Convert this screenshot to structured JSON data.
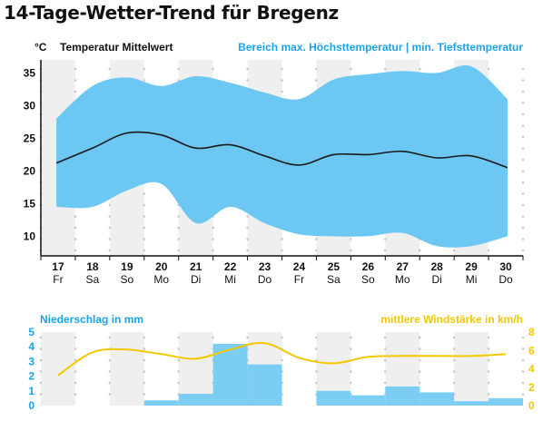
{
  "title": "14-Tage-Wetter-Trend für Bregenz",
  "colors": {
    "band": "#6cc8f2",
    "mean_line": "#1a1a1a",
    "accent": "#1aa3e8",
    "wind": "#f2c800",
    "precip": "#7ccdf4",
    "stripe": "#efefef",
    "dot": "#c8c8c8"
  },
  "chart_data": [
    {
      "type": "area",
      "unit_label": "°C",
      "mean_label": "Temperatur Mittelwert",
      "range_label": "Bereich max. Höchsttemperatur | min. Tiefsttemperatur",
      "days": [
        "17",
        "18",
        "19",
        "20",
        "21",
        "22",
        "23",
        "24",
        "25",
        "26",
        "27",
        "28",
        "29",
        "30"
      ],
      "weekdays": [
        "Fr",
        "Sa",
        "So",
        "Mo",
        "Di",
        "Mi",
        "Do",
        "Fr",
        "Sa",
        "So",
        "Mo",
        "Di",
        "Mi",
        "Do"
      ],
      "ylim": [
        7,
        37
      ],
      "yticks": [
        10,
        15,
        20,
        25,
        30,
        35
      ],
      "grid": false,
      "series": [
        {
          "name": "Temperatur Mittelwert",
          "values": [
            21.2,
            23.5,
            25.8,
            25.5,
            23.5,
            24.0,
            22.3,
            20.9,
            22.5,
            22.5,
            23.0,
            22.0,
            22.3,
            20.5
          ]
        },
        {
          "name": "max. Höchsttemperatur",
          "values": [
            28.0,
            33.0,
            34.3,
            33.0,
            34.5,
            33.5,
            32.0,
            31.0,
            34.0,
            34.8,
            35.3,
            35.0,
            36.0,
            31.0
          ]
        },
        {
          "name": "min. Tiefsttemperatur",
          "values": [
            14.5,
            14.5,
            17.0,
            18.0,
            12.0,
            14.5,
            12.0,
            10.3,
            10.0,
            10.0,
            10.5,
            8.5,
            8.5,
            10.0
          ]
        }
      ]
    },
    {
      "type": "bar",
      "left_label": "Niederschlag in mm",
      "right_label": "mittlere Windstärke in km/h",
      "ylim_left": [
        0,
        5
      ],
      "yticks_left": [
        0,
        1,
        2,
        3,
        4,
        5
      ],
      "ylim_right": [
        0,
        8
      ],
      "yticks_right": [
        0,
        2,
        4,
        6,
        8
      ],
      "series": [
        {
          "name": "Niederschlag in mm",
          "values": [
            0,
            0,
            0,
            0.35,
            0.8,
            4.2,
            2.8,
            0,
            1.0,
            0.7,
            1.3,
            0.9,
            0.3,
            0.5
          ]
        },
        {
          "name": "mittlere Windstärke in km/h",
          "values": [
            3.3,
            5.8,
            6.1,
            5.6,
            5.1,
            6.1,
            6.8,
            5.2,
            4.6,
            5.3,
            5.4,
            5.4,
            5.4,
            5.6
          ]
        }
      ]
    }
  ]
}
